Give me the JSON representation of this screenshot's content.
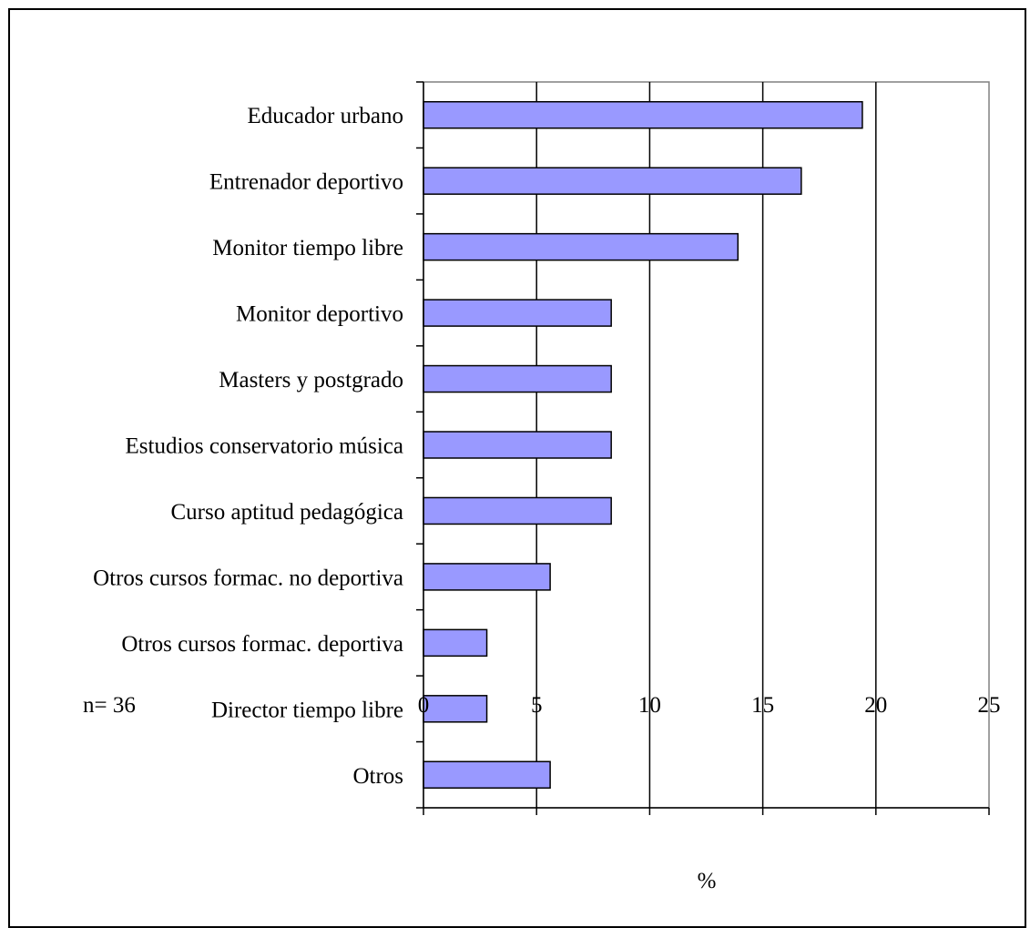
{
  "chart_data": {
    "type": "bar",
    "orientation": "horizontal",
    "categories": [
      "Educador urbano",
      "Entrenador deportivo",
      "Monitor tiempo libre",
      "Monitor deportivo",
      "Masters y postgrado",
      "Estudios conservatorio música",
      "Curso aptitud pedagógica",
      "Otros cursos formac. no deportiva",
      "Otros cursos formac. deportiva",
      "Director tiempo libre",
      "Otros"
    ],
    "values": [
      19.4,
      16.7,
      13.9,
      8.3,
      8.3,
      8.3,
      8.3,
      5.6,
      2.8,
      2.8,
      5.6
    ],
    "title": "",
    "xlabel": "%",
    "ylabel": "",
    "xlim": [
      0,
      25
    ],
    "xticks": [
      0,
      5,
      10,
      15,
      20,
      25
    ],
    "grid": "vertical",
    "bar_color": "#9999ff",
    "note": "n= 36"
  }
}
